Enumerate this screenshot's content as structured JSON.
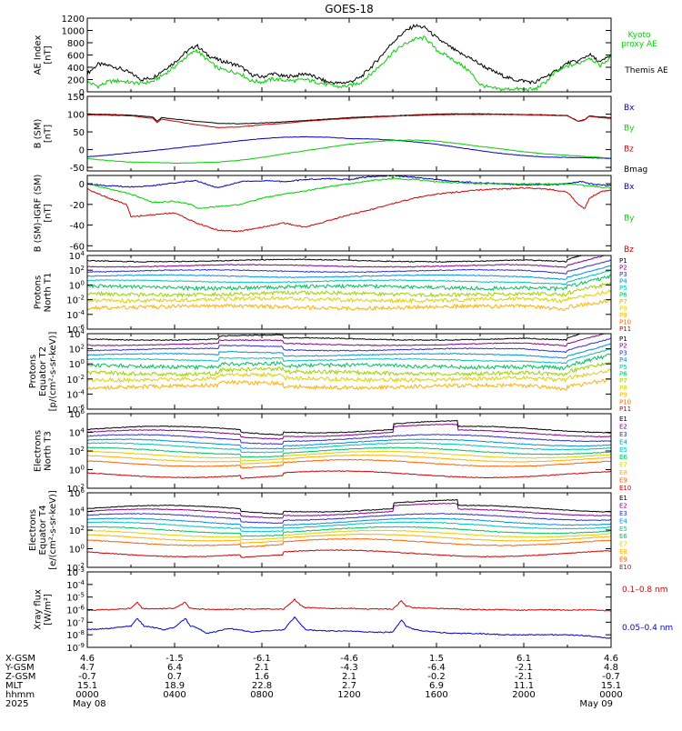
{
  "title": "GOES-18",
  "colors": {
    "black": "#000000",
    "green": "#00d000",
    "blue": "#0000c8",
    "red": "#d00000"
  },
  "chart_data": [
    {
      "type": "line",
      "ylabel": [
        "AE Index",
        "[nT]"
      ],
      "ylim": [
        0,
        1200
      ],
      "yticks": [
        "0",
        "200",
        "400",
        "600",
        "800",
        "1000",
        "1200"
      ],
      "legend": [
        {
          "text": "Kyoto",
          "color": "#00d000"
        },
        {
          "text": "proxy AE",
          "color": "#00d000"
        },
        {
          "text": "Themis AE",
          "color": "#000000"
        }
      ],
      "series": [
        {
          "name": "Themis AE",
          "color": "#000000",
          "x": [
            0,
            0.5,
            1,
            1.5,
            2,
            2.5,
            3,
            3.5,
            4,
            4.5,
            5,
            5.5,
            6,
            6.5,
            7,
            7.5,
            8,
            8.5,
            9,
            9.5,
            10,
            10.5,
            11,
            11.5,
            12,
            12.5,
            13,
            13.5,
            14,
            14.5,
            15,
            15.5,
            16,
            16.5,
            17,
            17.5,
            18,
            18.5,
            19,
            19.5,
            20,
            20.5,
            21,
            21.5,
            22,
            22.5,
            23,
            23.5,
            24
          ],
          "y": [
            300,
            450,
            430,
            380,
            300,
            200,
            230,
            360,
            480,
            640,
            760,
            600,
            520,
            470,
            420,
            280,
            240,
            300,
            250,
            260,
            300,
            230,
            160,
            140,
            160,
            230,
            400,
            600,
            810,
            970,
            1080,
            1040,
            880,
            760,
            640,
            560,
            450,
            350,
            270,
            200,
            180,
            150,
            250,
            340,
            470,
            500,
            610,
            480,
            600
          ]
        },
        {
          "name": "Kyoto proxy AE",
          "color": "#00d000",
          "x": [
            0,
            0.5,
            1,
            1.5,
            2,
            2.5,
            3,
            3.5,
            4,
            4.5,
            5,
            5.5,
            6,
            6.5,
            7,
            7.5,
            8,
            8.5,
            9,
            9.5,
            10,
            10.5,
            11,
            11.5,
            12,
            12.5,
            13,
            13.5,
            14,
            14.5,
            15,
            15.5,
            16,
            16.5,
            17,
            17.5,
            18,
            18.5,
            19,
            19.5,
            20,
            20.5,
            21,
            21.5,
            22,
            22.5,
            23,
            23.5,
            24
          ],
          "y": [
            160,
            90,
            170,
            180,
            150,
            140,
            170,
            280,
            410,
            560,
            680,
            520,
            380,
            340,
            300,
            180,
            160,
            210,
            190,
            180,
            200,
            160,
            120,
            80,
            100,
            150,
            290,
            460,
            640,
            770,
            860,
            880,
            680,
            580,
            470,
            340,
            120,
            60,
            40,
            50,
            40,
            40,
            160,
            330,
            420,
            460,
            560,
            430,
            560
          ]
        }
      ]
    },
    {
      "type": "line",
      "ylabel": [
        "B (SM)",
        "[nT]"
      ],
      "ylim": [
        -60,
        150
      ],
      "yticks": [
        "-50",
        "0",
        "50",
        "100",
        "150"
      ],
      "legend": [
        {
          "text": "Bx",
          "color": "#0000c8"
        },
        {
          "text": "By",
          "color": "#00d000"
        },
        {
          "text": "Bz",
          "color": "#d00000"
        },
        {
          "text": "Bmag",
          "color": "#000000"
        }
      ],
      "series": [
        {
          "name": "Bmag",
          "color": "#000000",
          "x": [
            0,
            1,
            2,
            3,
            3.2,
            3.4,
            4,
            5,
            6,
            7,
            8,
            9,
            10,
            11,
            12,
            13,
            14,
            15,
            16,
            17,
            18,
            19,
            20,
            21,
            22,
            22.5,
            22.8,
            23,
            23.5,
            24
          ],
          "y": [
            100,
            99,
            97,
            92,
            80,
            90,
            86,
            80,
            74,
            73,
            75,
            78,
            82,
            86,
            90,
            93,
            95,
            98,
            100,
            101,
            101,
            100,
            99,
            98,
            96,
            80,
            85,
            95,
            92,
            90
          ]
        },
        {
          "name": "Bz",
          "color": "#d00000",
          "x": [
            0,
            1,
            2,
            3,
            3.2,
            3.4,
            4,
            5,
            6,
            7,
            8,
            9,
            10,
            11,
            12,
            13,
            14,
            15,
            16,
            17,
            18,
            19,
            20,
            21,
            22,
            22.5,
            22.8,
            23,
            23.5,
            24
          ],
          "y": [
            98,
            97,
            95,
            88,
            76,
            86,
            80,
            70,
            62,
            64,
            70,
            74,
            80,
            84,
            88,
            91,
            94,
            96,
            98,
            99,
            99,
            99,
            98,
            97,
            95,
            79,
            84,
            94,
            90,
            88
          ]
        },
        {
          "name": "Bx",
          "color": "#0000c8",
          "x": [
            0,
            1,
            2,
            3,
            4,
            5,
            6,
            7,
            8,
            9,
            10,
            11,
            12,
            13,
            14,
            15,
            16,
            17,
            18,
            19,
            20,
            21,
            22,
            23,
            24
          ],
          "y": [
            -20,
            -15,
            -9,
            -3,
            4,
            11,
            18,
            25,
            31,
            35,
            36,
            35,
            31,
            30,
            27,
            22,
            15,
            6,
            -3,
            -11,
            -17,
            -21,
            -22,
            -23,
            -25
          ]
        },
        {
          "name": "By",
          "color": "#00d000",
          "x": [
            0,
            1,
            2,
            3,
            4,
            5,
            6,
            7,
            8,
            9,
            10,
            11,
            12,
            13,
            14,
            15,
            16,
            17,
            18,
            19,
            20,
            21,
            22,
            23,
            24
          ],
          "y": [
            -25,
            -31,
            -35,
            -36,
            -38,
            -37,
            -35,
            -30,
            -22,
            -12,
            -3,
            6,
            15,
            22,
            26,
            27,
            24,
            17,
            9,
            2,
            -6,
            -12,
            -16,
            -20,
            -24
          ]
        }
      ]
    },
    {
      "type": "line",
      "ylabel": [
        "B (SM)-IGRF (SM)",
        "[nT]"
      ],
      "ylim": [
        -65,
        8
      ],
      "yticks": [
        "-60",
        "-40",
        "-20",
        "0"
      ],
      "legend": [
        {
          "text": "Bx",
          "color": "#0000c8"
        },
        {
          "text": "By",
          "color": "#00d000"
        },
        {
          "text": "Bz",
          "color": "#d00000"
        }
      ],
      "series": [
        {
          "name": "Bx",
          "color": "#0000c8",
          "x": [
            0,
            1,
            2,
            3,
            4,
            5,
            6,
            6.5,
            7,
            8,
            9,
            10,
            11,
            12,
            13,
            14,
            15,
            16,
            17,
            18,
            19,
            20,
            21,
            22,
            22.6,
            23,
            24
          ],
          "y": [
            0,
            -2,
            -3,
            -2,
            1,
            3,
            -4,
            -1,
            2,
            3,
            2,
            4,
            5,
            4,
            7,
            8,
            6,
            4,
            2,
            1,
            0,
            -1,
            -1,
            0,
            2,
            0,
            -2
          ]
        },
        {
          "name": "By",
          "color": "#00d000",
          "x": [
            0,
            1,
            2,
            3,
            4,
            4.8,
            5,
            6,
            7,
            8,
            9,
            10,
            11,
            12,
            13,
            14,
            15,
            16,
            17,
            18,
            19,
            20,
            21,
            22,
            23,
            24
          ],
          "y": [
            0,
            -5,
            -10,
            -18,
            -17,
            -20,
            -24,
            -22,
            -20,
            -14,
            -10,
            -7,
            -3,
            0,
            3,
            5,
            4,
            2,
            1,
            0,
            0,
            0,
            0,
            0,
            -2,
            -4
          ]
        },
        {
          "name": "Bz",
          "color": "#d00000",
          "x": [
            0,
            1,
            1.8,
            2,
            3,
            4,
            5,
            6,
            7,
            8,
            9,
            10,
            11,
            12,
            13,
            14,
            15,
            16,
            17,
            18,
            19,
            20,
            21,
            22,
            22.5,
            22.8,
            23,
            23.5,
            24
          ],
          "y": [
            -5,
            -14,
            -20,
            -32,
            -30,
            -28,
            -38,
            -45,
            -46,
            -42,
            -38,
            -42,
            -36,
            -30,
            -25,
            -19,
            -14,
            -10,
            -8,
            -6,
            -5,
            -4,
            -5,
            -8,
            -20,
            -24,
            -14,
            -8,
            -6
          ]
        }
      ]
    },
    {
      "type": "line",
      "log_scale": true,
      "ylabel": [
        "Protons",
        "North T1"
      ],
      "yexp": [
        -6,
        4
      ],
      "yticks": [
        "10^4",
        "10^2",
        "10^0",
        "10^-2",
        "10^-4",
        "10^-6"
      ],
      "channels": [
        "P1",
        "P2",
        "P3",
        "P4",
        "P5",
        "P6",
        "P7",
        "P8",
        "P9",
        "P10",
        "P11"
      ]
    },
    {
      "type": "line",
      "log_scale": true,
      "ylabel": [
        "Protons",
        "Equator T2",
        "[p/(cm²-s-sr-keV)]"
      ],
      "yexp": [
        -6,
        4
      ],
      "yticks": [
        "10^4",
        "10^2",
        "10^0",
        "10^-2",
        "10^-4",
        "10^-6"
      ],
      "channels": [
        "P1",
        "P2",
        "P3",
        "P4",
        "P5",
        "P6",
        "P7",
        "P8",
        "P9",
        "P10",
        "P11"
      ]
    },
    {
      "type": "line",
      "log_scale": true,
      "ylabel": [
        "Electrons",
        "North T3"
      ],
      "yexp": [
        -2,
        6
      ],
      "yticks": [
        "10^6",
        "10^4",
        "10^2",
        "10^0",
        "10^-2"
      ],
      "channels": [
        "E1",
        "E2",
        "E3",
        "E4",
        "E5",
        "E6",
        "E7",
        "E8",
        "E9",
        "E10"
      ]
    },
    {
      "type": "line",
      "log_scale": true,
      "ylabel": [
        "Electrons",
        "Equator T4",
        "[e/(cm²-s-sr-keV)]"
      ],
      "yexp": [
        -2,
        6
      ],
      "yticks": [
        "10^6",
        "10^4",
        "10^2",
        "10^0",
        "10^-2"
      ],
      "channels": [
        "E1",
        "E2",
        "E3",
        "E4",
        "E5",
        "E6",
        "E7",
        "E8",
        "E9",
        "E10"
      ]
    },
    {
      "type": "line",
      "log_scale": true,
      "ylabel": [
        "Xray flux",
        "[W/m²]"
      ],
      "yexp": [
        -9,
        -3
      ],
      "yticks": [
        "10^-3",
        "10^-4",
        "10^-5",
        "10^-6",
        "10^-7",
        "10^-8",
        "10^-9"
      ],
      "legend": [
        {
          "text": "0.1–0.8 nm",
          "color": "#d00000"
        },
        {
          "text": "0.05–0.4 nm",
          "color": "#0000c8"
        }
      ],
      "series": [
        {
          "name": "0.1–0.8 nm",
          "color": "#d00000",
          "x": [
            0,
            1,
            2,
            2.3,
            2.5,
            3,
            4,
            4.5,
            4.7,
            5,
            6,
            7,
            8,
            9,
            9.5,
            9.8,
            10,
            11,
            12,
            13,
            14,
            14.4,
            14.6,
            15,
            16,
            17,
            18,
            19,
            20,
            21,
            22,
            23,
            24
          ],
          "y": [
            -6.05,
            -6.0,
            -5.9,
            -5.4,
            -5.9,
            -5.95,
            -5.9,
            -5.4,
            -5.9,
            -5.95,
            -6.0,
            -5.95,
            -5.95,
            -5.95,
            -5.2,
            -5.7,
            -5.85,
            -5.9,
            -5.9,
            -5.95,
            -5.95,
            -5.3,
            -5.7,
            -5.85,
            -5.9,
            -5.95,
            -6.0,
            -6.0,
            -6.05,
            -6.0,
            -6.05,
            -6.0,
            -6.1
          ]
        },
        {
          "name": "0.05–0.4 nm",
          "color": "#0000c8",
          "x": [
            0,
            1,
            2,
            2.3,
            2.6,
            3,
            3.5,
            4,
            4.5,
            4.7,
            5,
            5.5,
            6,
            6.5,
            7,
            7.5,
            8,
            9,
            9.5,
            9.8,
            10,
            11,
            12,
            13,
            14,
            14.4,
            14.6,
            15,
            16,
            17,
            18,
            19,
            20,
            21,
            22,
            23,
            24
          ],
          "y": [
            -7.6,
            -7.5,
            -7.3,
            -6.7,
            -7.3,
            -7.4,
            -7.6,
            -7.4,
            -6.7,
            -7.3,
            -7.4,
            -7.9,
            -7.7,
            -7.5,
            -7.6,
            -7.8,
            -7.7,
            -7.6,
            -6.6,
            -7.2,
            -7.6,
            -7.7,
            -7.7,
            -7.8,
            -7.8,
            -6.8,
            -7.3,
            -7.6,
            -7.8,
            -7.9,
            -7.9,
            -8.0,
            -8.0,
            -8.0,
            -8.0,
            -8.1,
            -8.3
          ]
        }
      ]
    }
  ],
  "xaxis": {
    "xlim": [
      0,
      24
    ],
    "row_labels": [
      "X-GSM",
      "Y-GSM",
      "Z-GSM",
      "MLT",
      "hhmm",
      "2025"
    ],
    "columns": [
      {
        "x": 0,
        "values": [
          "4.6",
          "4.7",
          "-0.7",
          "15.1",
          "0000",
          "May 08"
        ]
      },
      {
        "x": 4,
        "values": [
          "-1.5",
          "6.4",
          "0.7",
          "18.9",
          "0400",
          ""
        ]
      },
      {
        "x": 8,
        "values": [
          "-6.1",
          "2.1",
          "1.6",
          "22.8",
          "0800",
          ""
        ]
      },
      {
        "x": 12,
        "values": [
          "-4.6",
          "-4.3",
          "2.1",
          "2.7",
          "1200",
          ""
        ]
      },
      {
        "x": 16,
        "values": [
          "1.5",
          "-6.4",
          "-0.2",
          "6.9",
          "1600",
          ""
        ]
      },
      {
        "x": 20,
        "values": [
          "6.1",
          "-2.1",
          "-2.1",
          "11.1",
          "2000",
          ""
        ]
      },
      {
        "x": 24,
        "values": [
          "4.6",
          "4.8",
          "-0.7",
          "15.1",
          "0000",
          "May 09"
        ]
      }
    ]
  }
}
